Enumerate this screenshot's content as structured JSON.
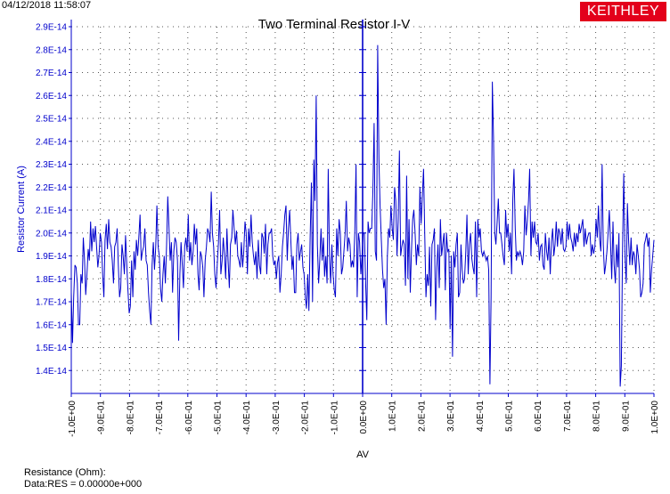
{
  "header": {
    "timestamp": "04/12/2018 11:58:07",
    "logo": "KEITHLEY"
  },
  "footer": {
    "line1": "Resistance (Ohm):",
    "line2": "Data:RES = 0.00000e+000"
  },
  "colors": {
    "series": "#0000cc",
    "axis": "#0000cc",
    "grid": "#555555",
    "logo_bg": "#e3001b"
  },
  "chart_data": {
    "type": "line",
    "title": "Two Terminal Resistor I-V",
    "xlabel": "AV",
    "ylabel": "Resistor Current (A)",
    "xlim": [
      -1.0,
      1.0
    ],
    "ylim": [
      1.3e-14,
      2.9e-14
    ],
    "grid": true,
    "x_ticks": [
      "-1.0E+00",
      "-9.0E-01",
      "-8.0E-01",
      "-7.0E-01",
      "-6.0E-01",
      "-5.0E-01",
      "-4.0E-01",
      "-3.0E-01",
      "-2.0E-01",
      "-1.0E-01",
      "0.0E+00",
      "1.0E-01",
      "2.0E-01",
      "3.0E-01",
      "4.0E-01",
      "5.0E-01",
      "6.0E-01",
      "7.0E-01",
      "8.0E-01",
      "9.0E-01",
      "1.0E+00"
    ],
    "y_ticks": [
      "2.9E-14",
      "2.8E-14",
      "2.7E-14",
      "2.6E-14",
      "2.5E-14",
      "2.4E-14",
      "2.3E-14",
      "2.2E-14",
      "2.1E-14",
      "2.0E-14",
      "1.9E-14",
      "1.8E-14",
      "1.7E-14",
      "1.6E-14",
      "1.5E-14",
      "1.4E-14"
    ],
    "series": [
      {
        "values": [
          1.74,
          1.52,
          1.72,
          1.86,
          1.85,
          1.78,
          1.6,
          1.6,
          1.82,
          1.78,
          1.98,
          1.88,
          1.73,
          1.82,
          1.93,
          1.88,
          2.05,
          1.92,
          2.02,
          1.96,
          2.03,
          1.94,
          1.85,
          1.9,
          2.0,
          1.96,
          1.82,
          1.72,
          1.97,
          2.04,
          1.93,
          2.06,
          1.96,
          1.94,
          1.88,
          1.78,
          1.94,
          1.96,
          2.02,
          1.86,
          1.72,
          1.76,
          1.95,
          1.9,
          1.82,
          1.99,
          1.86,
          1.75,
          1.65,
          1.68,
          1.88,
          1.72,
          1.92,
          1.84,
          1.97,
          1.9,
          1.98,
          2.08,
          1.88,
          1.92,
          1.94,
          2.02,
          1.88,
          1.86,
          1.74,
          1.66,
          1.6,
          1.86,
          1.96,
          1.84,
          1.94,
          2.12,
          1.94,
          1.9,
          1.76,
          1.7,
          1.82,
          1.9,
          1.78,
          1.95,
          2.16,
          2.02,
          1.88,
          1.96,
          1.74,
          1.92,
          1.98,
          1.96,
          1.88,
          1.53,
          1.82,
          1.96,
          1.86,
          1.76,
          1.94,
          1.98,
          1.92,
          2.08,
          1.88,
          1.96,
          1.86,
          1.92,
          2.04,
          1.95,
          2.02,
          1.82,
          1.75,
          1.92,
          1.9,
          1.85,
          1.72,
          1.88,
          1.94,
          2.02,
          2.0,
          1.96,
          2.18,
          2.0,
          1.94,
          1.82,
          1.76,
          1.86,
          1.96,
          2.1,
          1.82,
          1.88,
          1.98,
          1.9,
          1.8,
          2.02,
          1.88,
          1.76,
          1.95,
          1.98,
          2.1,
          2.02,
          1.95,
          2.01,
          1.9,
          1.88,
          1.85,
          1.96,
          1.85,
          1.92,
          2.05,
          2.0,
          1.82,
          2.02,
          1.94,
          2.08,
          1.96,
          1.9,
          1.86,
          1.92,
          1.8,
          1.97,
          1.86,
          1.82,
          2.0,
          1.98,
          1.91,
          2.04,
          1.82,
          1.95,
          2.0,
          2.0,
          2.02,
          1.9,
          1.86,
          1.88,
          1.8,
          1.87,
          1.9,
          1.74,
          1.82,
          1.94,
          2.0,
          2.08,
          2.12,
          1.88,
          2.02,
          2.1,
          1.97,
          1.84,
          1.9,
          1.74,
          1.74,
          1.95,
          2.0,
          1.88,
          1.92,
          1.95,
          1.85,
          1.82,
          1.72,
          1.67,
          1.82,
          1.66,
          1.98,
          2.22,
          1.7,
          2.32,
          2.14,
          2.6,
          1.95,
          1.78,
          1.88,
          2.02,
          1.88,
          1.98,
          1.81,
          1.9,
          1.78,
          2.28,
          1.9,
          1.78,
          1.95,
          1.82,
          1.75,
          1.72,
          2.02,
          1.9,
          2.06,
          2.0,
          1.82,
          1.85,
          1.92,
          2.0,
          2.14,
          1.92,
          1.98,
          1.95,
          1.85,
          1.88,
          1.85,
          2.0,
          2.3,
          1.72,
          2.0,
          1.96,
          1.82,
          1.9,
          2.0,
          2.0,
          1.78,
          1.62,
          2.05,
          2.0,
          2.02,
          2.02,
          2.18,
          2.48,
          1.92,
          1.88,
          2.82,
          2.32,
          2.12,
          1.97,
          1.84,
          1.76,
          1.8,
          1.6,
          1.9,
          2.02,
          1.98,
          2.12,
          2.02,
          1.97,
          2.2,
          2.14,
          1.9,
          2.05,
          2.36,
          1.9,
          1.94,
          1.97,
          1.95,
          1.77,
          2.25,
          1.8,
          2.06,
          1.74,
          1.92,
          2.06,
          2.1,
          2.0,
          1.86,
          1.95,
          1.9,
          2.2,
          2.04,
          2.16,
          2.28,
          2.0,
          1.72,
          1.82,
          1.77,
          1.94,
          1.68,
          1.95,
          1.97,
          2.02,
          1.62,
          1.85,
          1.95,
          1.76,
          2.06,
          1.9,
          1.95,
          2.0,
          1.75,
          2.0,
          1.92,
          1.93,
          1.58,
          1.9,
          1.46,
          1.92,
          1.85,
          1.95,
          2.0,
          1.72,
          1.74,
          1.95,
          1.84,
          1.78,
          1.8,
          1.92,
          2.08,
          1.82,
          1.95,
          2.0,
          1.89,
          1.85,
          1.82,
          2.05,
          1.72,
          2.06,
          1.98,
          2.02,
          1.92,
          1.9,
          1.92,
          1.9,
          1.88,
          1.9,
          1.84,
          1.34,
          1.72,
          2.66,
          2.42,
          2.0,
          1.95,
          2.05,
          2.15,
          2.0,
          2.0,
          1.95,
          1.9,
          1.86,
          2.1,
          1.98,
          2.04,
          1.92,
          2.0,
          1.82,
          2.15,
          2.28,
          2.02,
          1.88,
          1.92,
          1.9,
          1.92,
          1.9,
          1.86,
          1.92,
          2.12,
          1.99,
          2.05,
          2.14,
          2.28,
          1.9,
          2.05,
          1.98,
          2.05,
          1.96,
          1.95,
          2.0,
          1.88,
          1.94,
          1.95,
          1.86,
          1.84,
          2.0,
          1.92,
          1.88,
          1.98,
          1.82,
          1.96,
          2.02,
          1.9,
          1.95,
          2.05,
          1.94,
          2.02,
          2.0,
          1.95,
          2.02,
          1.93,
          1.92,
          1.94,
          2.05,
          1.97,
          2.04,
          1.98,
          1.96,
          1.92,
          2.0,
          1.94,
          2.0,
          1.96,
          2.04,
          2.0,
          2.03,
          2.06,
          1.94,
          2.02,
          1.95,
          1.98,
          2.0,
          2.0,
          1.9,
          1.95,
          1.91,
          1.94,
          2.06,
          1.98,
          2.12,
          1.97,
          1.92,
          2.3,
          1.95,
          1.82,
          1.86,
          1.92,
          2.0,
          2.1,
          1.95,
          1.8,
          2.05,
          1.86,
          1.78,
          1.95,
          1.85,
          2.0,
          1.33,
          1.42,
          1.95,
          2.26,
          1.9,
          1.78,
          2.13,
          1.96,
          1.86,
          1.98,
          1.86,
          1.92,
          1.9,
          1.82,
          1.95,
          1.9,
          1.84,
          1.72,
          1.74,
          1.78,
          1.95,
          1.97,
          2.0,
          1.94,
          1.98,
          1.74,
          1.84,
          1.9,
          1.97
        ]
      }
    ]
  }
}
